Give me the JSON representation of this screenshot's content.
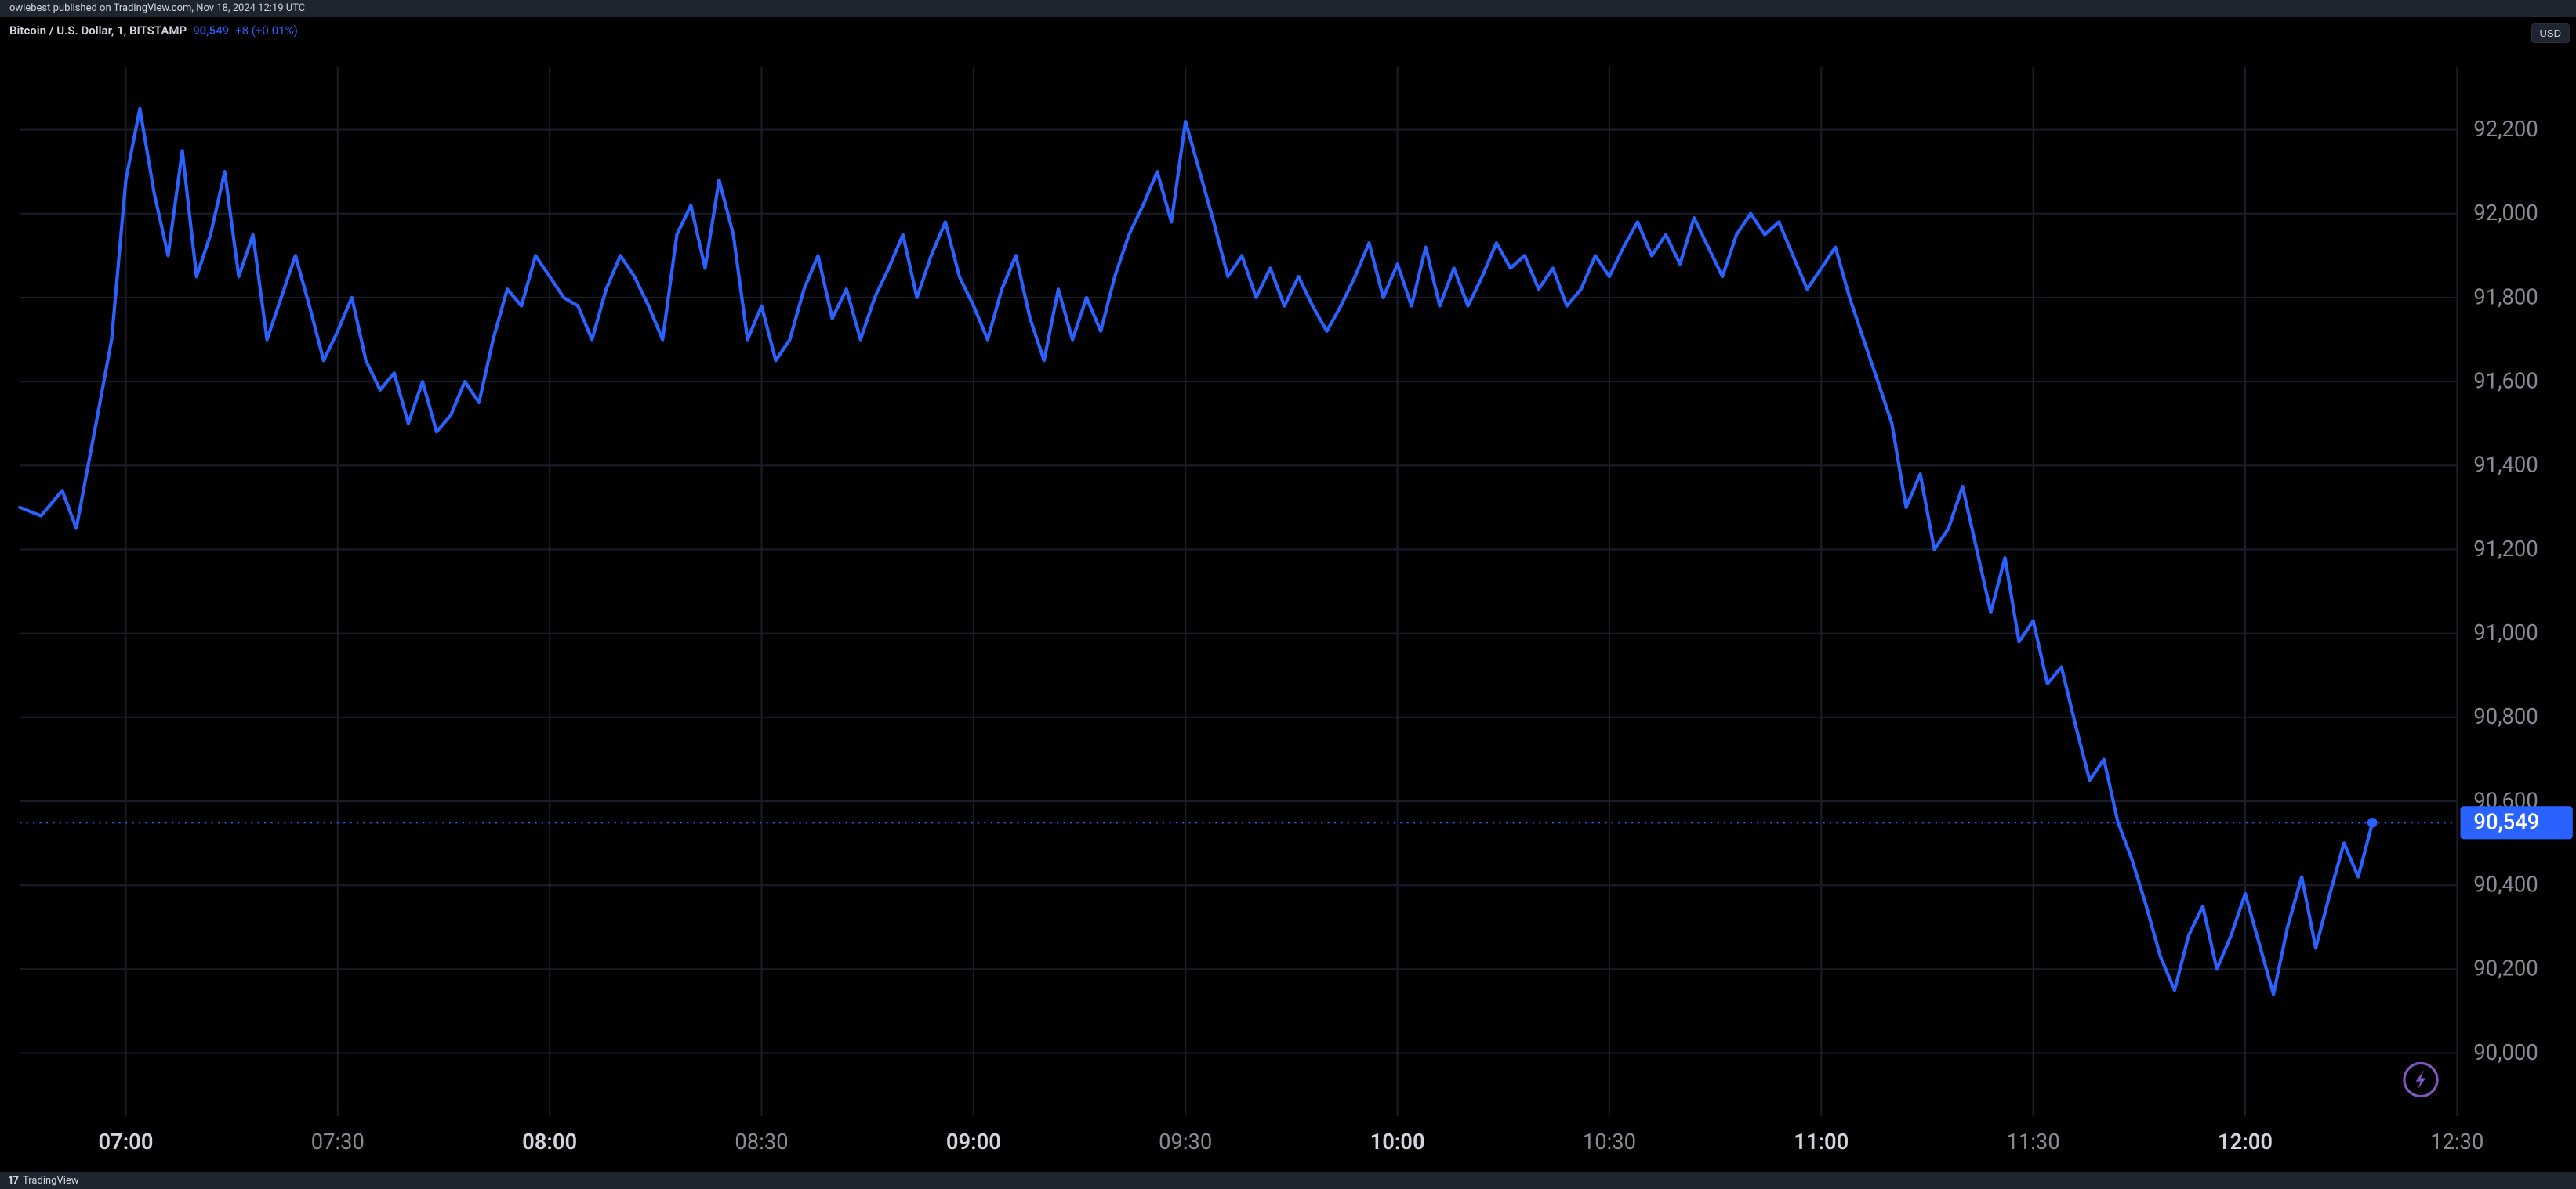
{
  "header": {
    "publish_text": "owiebest published on TradingView.com, Nov 18, 2024 12:19 UTC"
  },
  "legend": {
    "pair": "Bitcoin / U.S. Dollar, 1, BITSTAMP",
    "price": "90,549",
    "change": "+8 (+0.01%)"
  },
  "currency_button": {
    "label": "USD"
  },
  "footer": {
    "brand": "TradingView",
    "logo_glyph": "17"
  },
  "chart": {
    "type": "line",
    "background_color": "#000000",
    "grid_color": "#1a1d29",
    "line_color": "#2962ff",
    "line_width": 2,
    "axis_label_color": "#868b94",
    "axis_label_major_color": "#d1d4dc",
    "axis_fontsize": 13,
    "y_axis": {
      "min": 89850,
      "max": 92350,
      "ticks": [
        90000,
        90200,
        90400,
        90549,
        90600,
        90800,
        91000,
        91200,
        91400,
        91600,
        91800,
        92000,
        92200
      ],
      "tick_labels": [
        "90,000",
        "90,200",
        "90,400",
        "90,549",
        "90,600",
        "90,800",
        "91,000",
        "91,200",
        "91,400",
        "91,600",
        "91,800",
        "92,000",
        "92,200"
      ]
    },
    "x_axis": {
      "min": 405,
      "max": 750,
      "ticks": [
        420,
        450,
        480,
        510,
        540,
        570,
        600,
        630,
        660,
        690,
        720,
        750
      ],
      "tick_labels": [
        "07:00",
        "07:30",
        "08:00",
        "08:30",
        "09:00",
        "09:30",
        "10:00",
        "10:30",
        "11:00",
        "11:30",
        "12:00",
        "12:30"
      ],
      "major_indices": [
        0,
        2,
        4,
        6,
        8,
        10
      ]
    },
    "last_price": {
      "value": 90549,
      "label": "90,549"
    },
    "series": [
      [
        405,
        91300
      ],
      [
        408,
        91280
      ],
      [
        411,
        91340
      ],
      [
        413,
        91250
      ],
      [
        416,
        91520
      ],
      [
        418,
        91700
      ],
      [
        420,
        92080
      ],
      [
        422,
        92250
      ],
      [
        424,
        92050
      ],
      [
        426,
        91900
      ],
      [
        428,
        92150
      ],
      [
        430,
        91850
      ],
      [
        432,
        91950
      ],
      [
        434,
        92100
      ],
      [
        436,
        91850
      ],
      [
        438,
        91950
      ],
      [
        440,
        91700
      ],
      [
        442,
        91800
      ],
      [
        444,
        91900
      ],
      [
        446,
        91780
      ],
      [
        448,
        91650
      ],
      [
        450,
        91720
      ],
      [
        452,
        91800
      ],
      [
        454,
        91650
      ],
      [
        456,
        91580
      ],
      [
        458,
        91620
      ],
      [
        460,
        91500
      ],
      [
        462,
        91600
      ],
      [
        464,
        91480
      ],
      [
        466,
        91520
      ],
      [
        468,
        91600
      ],
      [
        470,
        91550
      ],
      [
        472,
        91700
      ],
      [
        474,
        91820
      ],
      [
        476,
        91780
      ],
      [
        478,
        91900
      ],
      [
        480,
        91850
      ],
      [
        482,
        91800
      ],
      [
        484,
        91780
      ],
      [
        486,
        91700
      ],
      [
        488,
        91820
      ],
      [
        490,
        91900
      ],
      [
        492,
        91850
      ],
      [
        494,
        91780
      ],
      [
        496,
        91700
      ],
      [
        498,
        91950
      ],
      [
        500,
        92020
      ],
      [
        502,
        91870
      ],
      [
        504,
        92080
      ],
      [
        506,
        91950
      ],
      [
        508,
        91700
      ],
      [
        510,
        91780
      ],
      [
        512,
        91650
      ],
      [
        514,
        91700
      ],
      [
        516,
        91820
      ],
      [
        518,
        91900
      ],
      [
        520,
        91750
      ],
      [
        522,
        91820
      ],
      [
        524,
        91700
      ],
      [
        526,
        91800
      ],
      [
        528,
        91870
      ],
      [
        530,
        91950
      ],
      [
        532,
        91800
      ],
      [
        534,
        91900
      ],
      [
        536,
        91980
      ],
      [
        538,
        91850
      ],
      [
        540,
        91780
      ],
      [
        542,
        91700
      ],
      [
        544,
        91820
      ],
      [
        546,
        91900
      ],
      [
        548,
        91750
      ],
      [
        550,
        91650
      ],
      [
        552,
        91820
      ],
      [
        554,
        91700
      ],
      [
        556,
        91800
      ],
      [
        558,
        91720
      ],
      [
        560,
        91850
      ],
      [
        562,
        91950
      ],
      [
        564,
        92020
      ],
      [
        566,
        92100
      ],
      [
        568,
        91980
      ],
      [
        570,
        92220
      ],
      [
        572,
        92100
      ],
      [
        574,
        91980
      ],
      [
        576,
        91850
      ],
      [
        578,
        91900
      ],
      [
        580,
        91800
      ],
      [
        582,
        91870
      ],
      [
        584,
        91780
      ],
      [
        586,
        91850
      ],
      [
        588,
        91780
      ],
      [
        590,
        91720
      ],
      [
        592,
        91780
      ],
      [
        594,
        91850
      ],
      [
        596,
        91930
      ],
      [
        598,
        91800
      ],
      [
        600,
        91880
      ],
      [
        602,
        91780
      ],
      [
        604,
        91920
      ],
      [
        606,
        91780
      ],
      [
        608,
        91870
      ],
      [
        610,
        91780
      ],
      [
        612,
        91850
      ],
      [
        614,
        91930
      ],
      [
        616,
        91870
      ],
      [
        618,
        91900
      ],
      [
        620,
        91820
      ],
      [
        622,
        91870
      ],
      [
        624,
        91780
      ],
      [
        626,
        91820
      ],
      [
        628,
        91900
      ],
      [
        630,
        91850
      ],
      [
        632,
        91920
      ],
      [
        634,
        91980
      ],
      [
        636,
        91900
      ],
      [
        638,
        91950
      ],
      [
        640,
        91880
      ],
      [
        642,
        91990
      ],
      [
        644,
        91920
      ],
      [
        646,
        91850
      ],
      [
        648,
        91950
      ],
      [
        650,
        92000
      ],
      [
        652,
        91950
      ],
      [
        654,
        91980
      ],
      [
        656,
        91900
      ],
      [
        658,
        91820
      ],
      [
        660,
        91870
      ],
      [
        662,
        91920
      ],
      [
        664,
        91800
      ],
      [
        666,
        91700
      ],
      [
        668,
        91600
      ],
      [
        670,
        91500
      ],
      [
        672,
        91300
      ],
      [
        674,
        91380
      ],
      [
        676,
        91200
      ],
      [
        678,
        91250
      ],
      [
        680,
        91350
      ],
      [
        682,
        91200
      ],
      [
        684,
        91050
      ],
      [
        686,
        91180
      ],
      [
        688,
        90980
      ],
      [
        690,
        91030
      ],
      [
        692,
        90880
      ],
      [
        694,
        90920
      ],
      [
        696,
        90780
      ],
      [
        698,
        90650
      ],
      [
        700,
        90700
      ],
      [
        702,
        90550
      ],
      [
        704,
        90460
      ],
      [
        706,
        90350
      ],
      [
        708,
        90230
      ],
      [
        710,
        90150
      ],
      [
        712,
        90280
      ],
      [
        714,
        90350
      ],
      [
        716,
        90200
      ],
      [
        718,
        90280
      ],
      [
        720,
        90380
      ],
      [
        722,
        90260
      ],
      [
        724,
        90140
      ],
      [
        726,
        90300
      ],
      [
        728,
        90420
      ],
      [
        730,
        90250
      ],
      [
        732,
        90380
      ],
      [
        734,
        90500
      ],
      [
        736,
        90420
      ],
      [
        738,
        90549
      ]
    ]
  }
}
